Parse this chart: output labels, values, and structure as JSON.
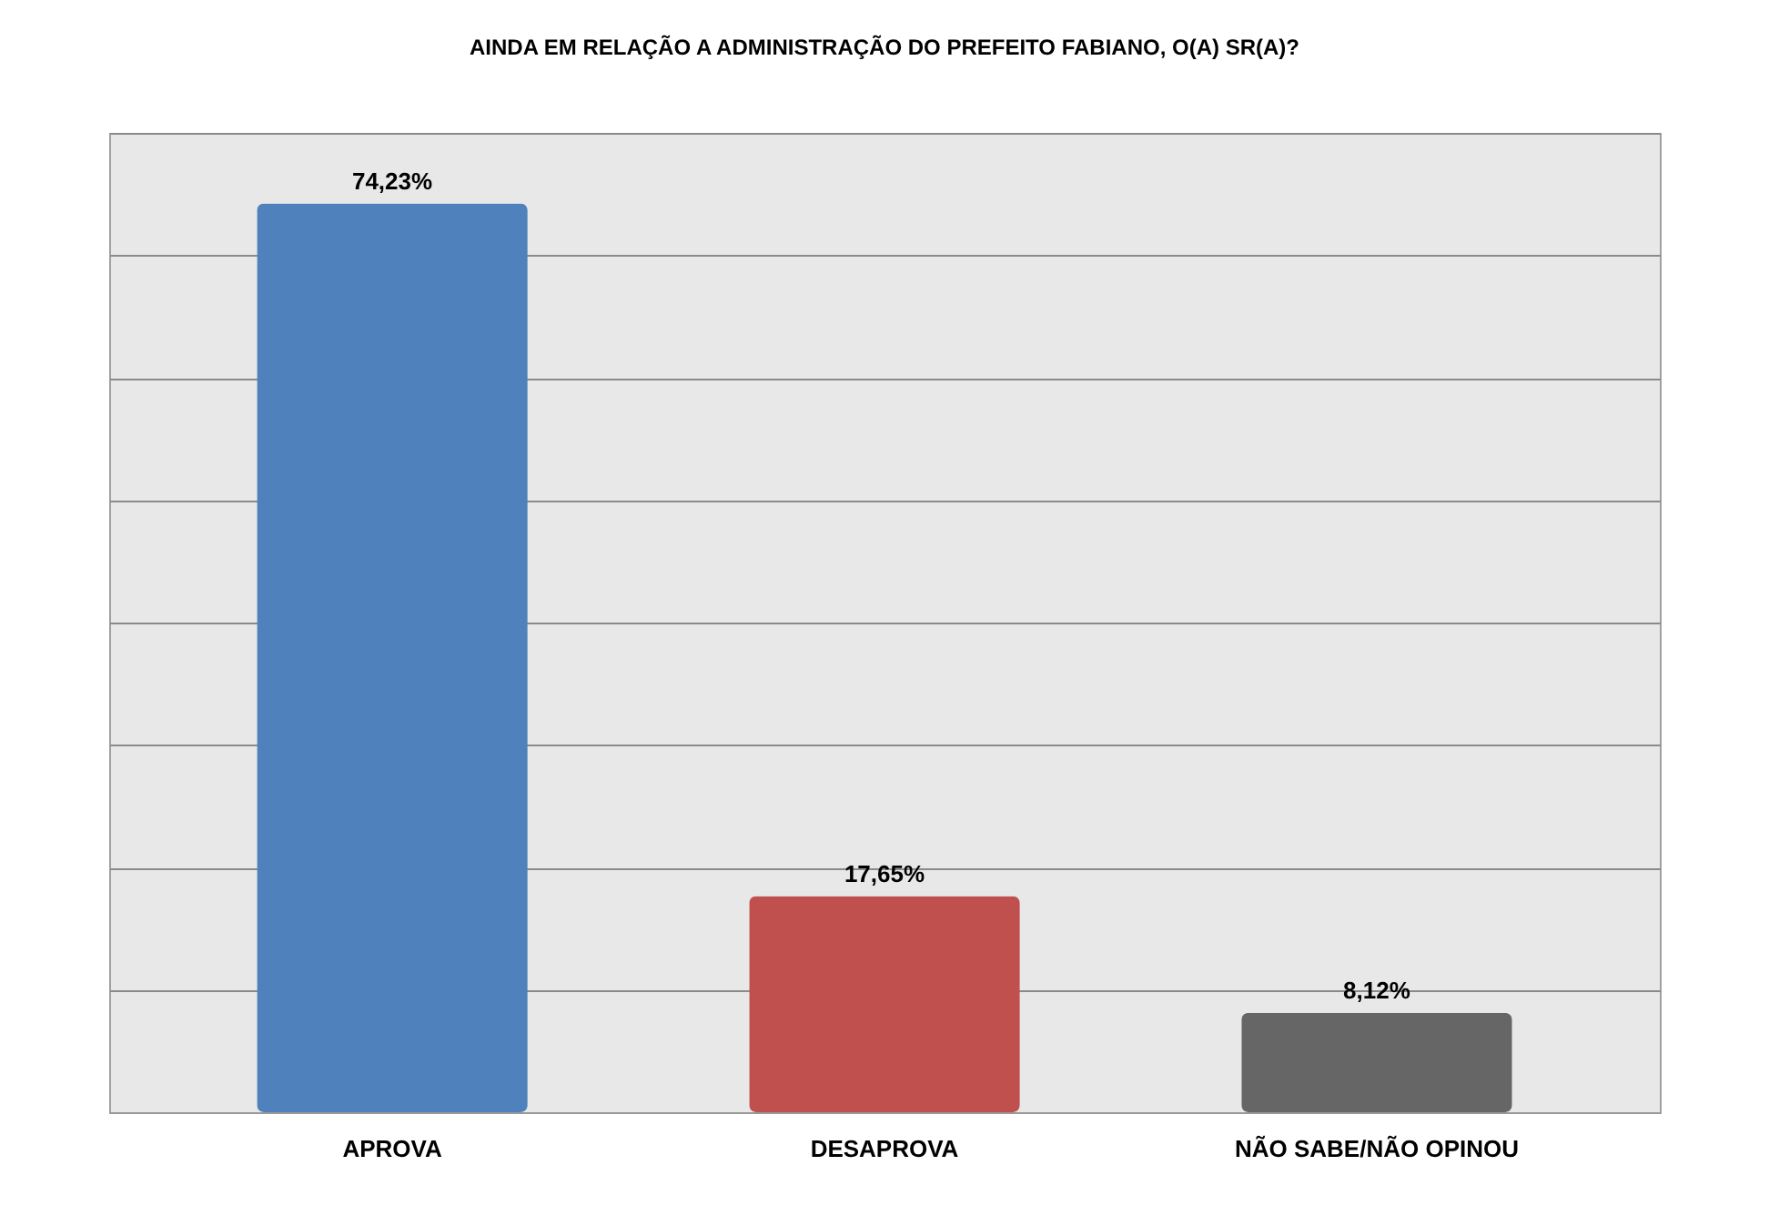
{
  "chart_data": {
    "type": "bar",
    "title": "AINDA EM RELAÇÃO A ADMINISTRAÇÃO DO PREFEITO FABIANO, O(A) SR(A)?",
    "categories": [
      "APROVA",
      "DESAPROVA",
      "NÃO SABE/NÃO OPINOU"
    ],
    "values": [
      74.23,
      17.65,
      8.12
    ],
    "colors": [
      "#4f81bd",
      "#c0504d",
      "#666666"
    ],
    "value_labels": [
      "74,23%",
      "17,65%",
      "8,12%"
    ],
    "ylim": [
      0,
      80
    ],
    "yticks": [
      {
        "value": 0,
        "label": null
      },
      {
        "value": 10,
        "label": null
      },
      {
        "value": 20,
        "label": null
      },
      {
        "value": 30,
        "label": null
      },
      {
        "value": 40,
        "label": null
      },
      {
        "value": 50,
        "label": null
      },
      {
        "value": 60,
        "label": null
      },
      {
        "value": 70,
        "label": null
      },
      {
        "value": 80,
        "label": null
      }
    ],
    "tick_labels": "x",
    "grid": "y"
  }
}
